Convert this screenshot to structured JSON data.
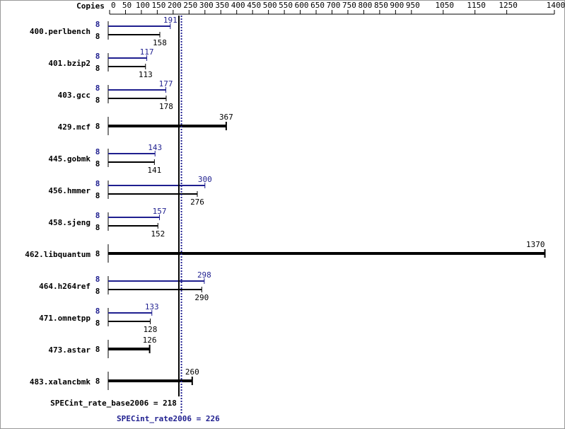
{
  "chart_data": {
    "type": "bar",
    "orientation": "horizontal",
    "axis_title": "Copies",
    "categories": [
      "400.perlbench",
      "401.bzip2",
      "403.gcc",
      "429.mcf",
      "445.gobmk",
      "456.hmmer",
      "458.sjeng",
      "462.libquantum",
      "464.h264ref",
      "471.omnetpp",
      "473.astar",
      "483.xalancbmk"
    ],
    "series": [
      {
        "color": "#1f1f8f",
        "values": [
          191,
          117,
          177,
          null,
          143,
          300,
          157,
          null,
          298,
          133,
          null,
          null
        ],
        "copies": [
          8,
          8,
          8,
          null,
          8,
          8,
          8,
          null,
          8,
          8,
          null,
          null
        ]
      },
      {
        "color": "#000000",
        "values": [
          158,
          113,
          178,
          367,
          141,
          276,
          152,
          1370,
          290,
          128,
          126,
          260
        ],
        "copies": [
          8,
          8,
          8,
          8,
          8,
          8,
          8,
          8,
          8,
          8,
          8,
          8
        ]
      }
    ],
    "xlim": [
      0,
      1400
    ],
    "xticks": [
      0,
      50,
      100,
      150,
      200,
      250,
      300,
      350,
      400,
      450,
      500,
      550,
      600,
      650,
      700,
      750,
      800,
      850,
      900,
      950,
      1050,
      1150,
      1250,
      1400
    ],
    "reference_lines": [
      {
        "label": "SPECint_rate_base2006 = 218",
        "value": 218,
        "color": "#000000",
        "style": "solid"
      },
      {
        "label": "SPECint_rate2006 = 226",
        "value": 226,
        "color": "#1f1f8f",
        "style": "dotted"
      }
    ]
  }
}
